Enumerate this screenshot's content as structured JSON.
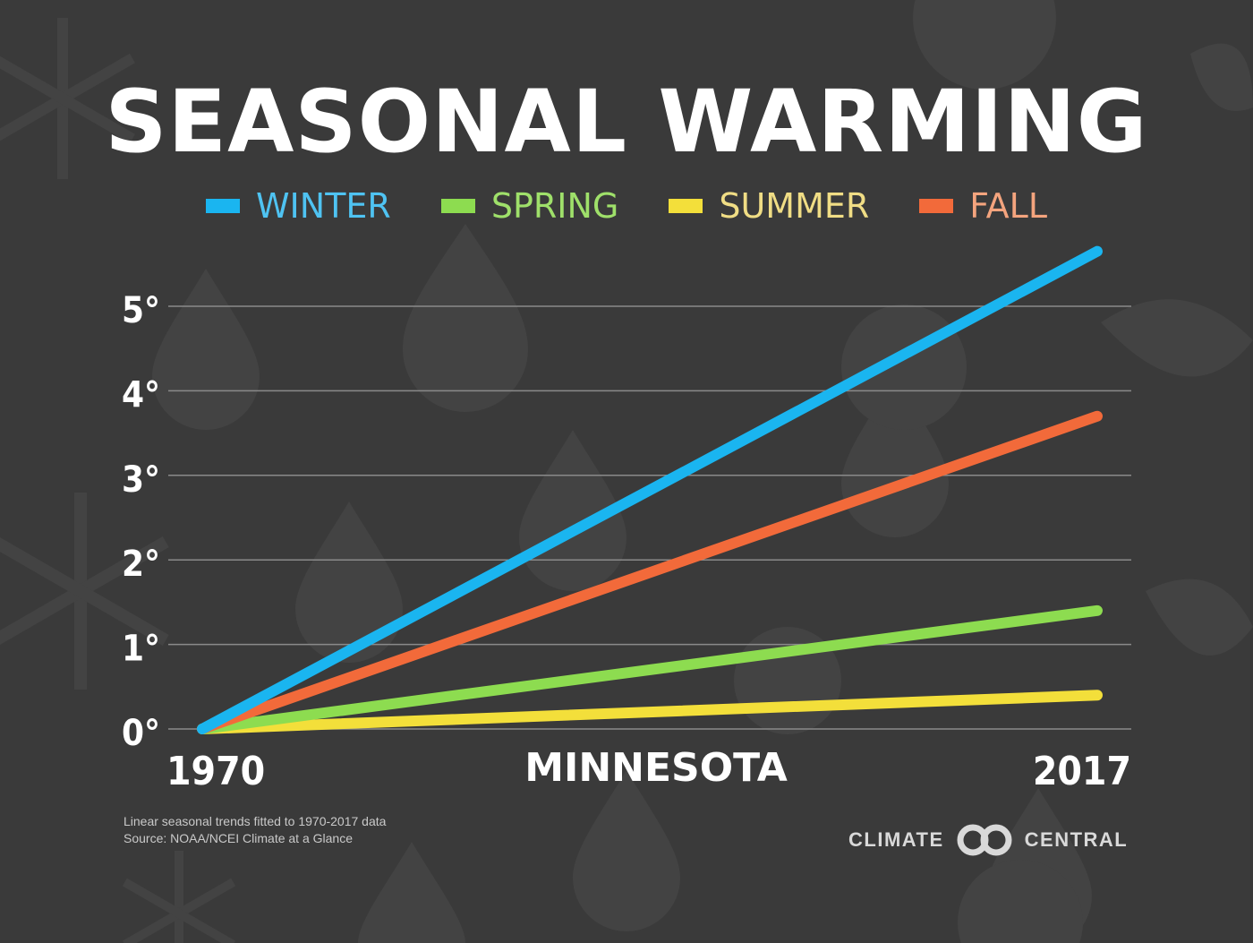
{
  "title": "SEASONAL WARMING",
  "region_label": "MINNESOTA",
  "note_line1": "Linear seasonal trends fitted to 1970-2017 data",
  "note_line2": "Source: NOAA/NCEI Climate at a Glance",
  "logo": {
    "left": "CLIMATE",
    "right": "CENTRAL"
  },
  "colors": {
    "background": "#3a3a3a",
    "grid": "#8a8a8a",
    "text": "#ffffff"
  },
  "legend": [
    {
      "label": "WINTER",
      "color": "#1ab5f0",
      "text_color": "#4fc3f2"
    },
    {
      "label": "SPRING",
      "color": "#8ddc50",
      "text_color": "#9fe06a"
    },
    {
      "label": "SUMMER",
      "color": "#f3df3a",
      "text_color": "#f0dd85"
    },
    {
      "label": "FALL",
      "color": "#f26a3a",
      "text_color": "#f4a47e"
    }
  ],
  "chart_data": {
    "type": "line",
    "title": "SEASONAL WARMING",
    "xlabel": "",
    "ylabel": "",
    "x": [
      1970,
      2017
    ],
    "x_tick_labels": [
      "1970",
      "2017"
    ],
    "ylim": [
      0,
      5
    ],
    "y_ticks": [
      0,
      1,
      2,
      3,
      4,
      5
    ],
    "y_tick_labels": [
      "0°",
      "1°",
      "2°",
      "3°",
      "4°",
      "5°"
    ],
    "grid": true,
    "legend_position": "top",
    "series": [
      {
        "name": "WINTER",
        "values": [
          0,
          5.65
        ],
        "color": "#1ab5f0"
      },
      {
        "name": "SPRING",
        "values": [
          0,
          1.4
        ],
        "color": "#8ddc50"
      },
      {
        "name": "SUMMER",
        "values": [
          0,
          0.4
        ],
        "color": "#f3df3a"
      },
      {
        "name": "FALL",
        "values": [
          0,
          3.7
        ],
        "color": "#f26a3a"
      }
    ]
  }
}
